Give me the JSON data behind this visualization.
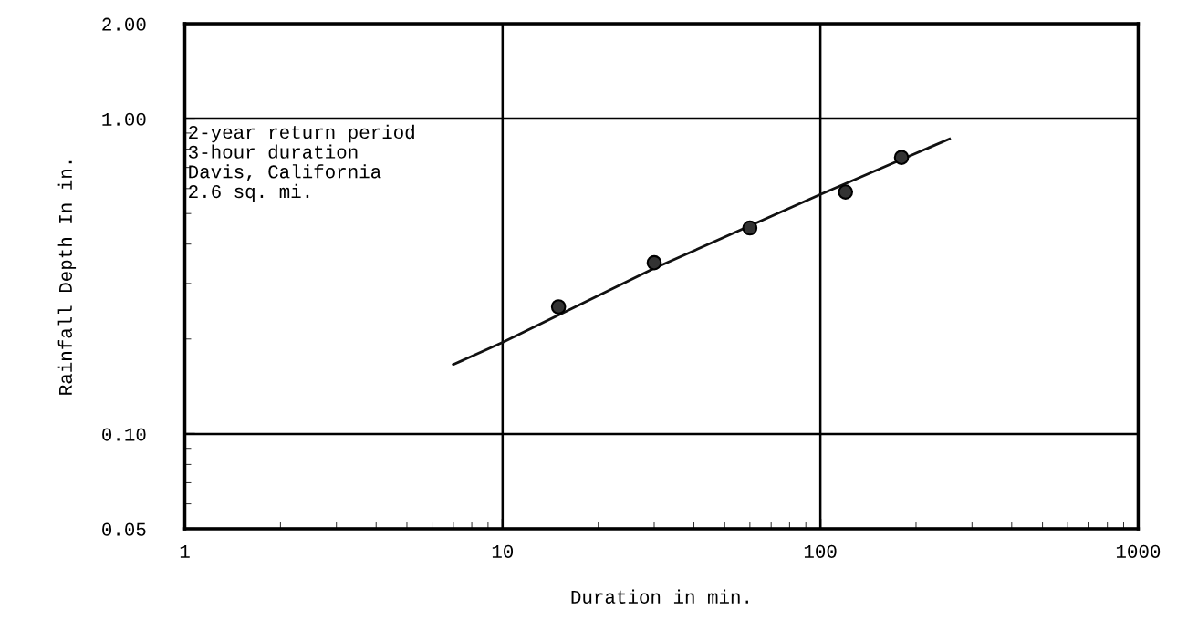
{
  "chart_data": {
    "type": "scatter",
    "xlabel": "Duration in min.",
    "ylabel": "Rainfall Depth In in.",
    "log": "xy",
    "grid": true,
    "xlim": [
      1,
      1000
    ],
    "ylim": [
      0.05,
      2.0
    ],
    "xticks": [
      1,
      10,
      100,
      1000
    ],
    "yticks": [
      {
        "value": 0.05,
        "label": "0.05"
      },
      {
        "value": 0.1,
        "label": "0.10"
      },
      {
        "value": 1.0,
        "label": "1.00"
      },
      {
        "value": 2.0,
        "label": "2.00"
      }
    ],
    "series": [
      {
        "marker": "circle",
        "color": "#333333",
        "x": [
          15,
          30,
          60,
          120,
          180
        ],
        "values": [
          0.253,
          0.349,
          0.45,
          0.585,
          0.753
        ]
      },
      {
        "type": "line",
        "color": "#111111",
        "marker": "none",
        "x": [
          7,
          10,
          30,
          100,
          255
        ],
        "values": [
          0.166,
          0.195,
          0.335,
          0.575,
          0.863
        ]
      }
    ],
    "annotations": [
      "2-year return period\n3-hour duration\nDavis, California\n2.6 sq. mi."
    ]
  }
}
